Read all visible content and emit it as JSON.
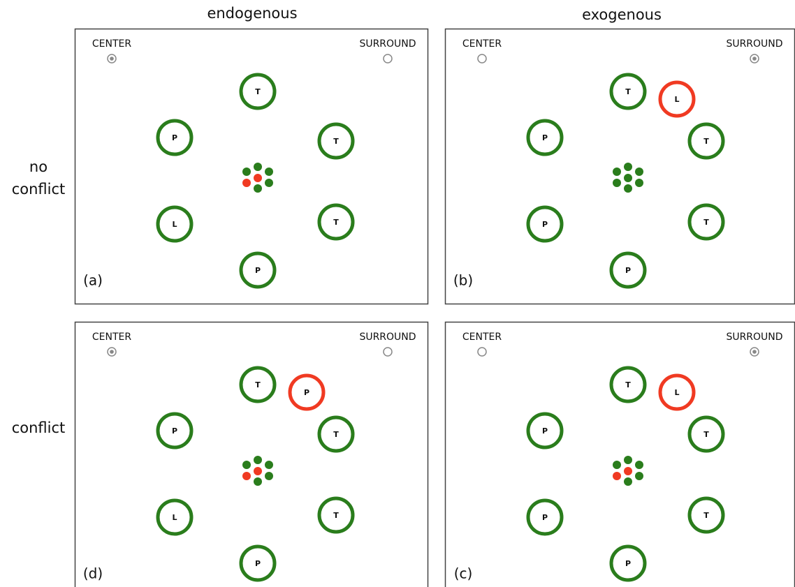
{
  "column_headers": [
    "endogenous",
    "exogenous"
  ],
  "row_labels": [
    {
      "lines": [
        "no",
        "conflict"
      ]
    },
    {
      "lines": [
        "conflict"
      ]
    }
  ],
  "panels": [
    {
      "label": "(a)",
      "center_label": "CENTER",
      "surround_label": "SURROUND",
      "selected": "center",
      "targets": [
        {
          "letter": "T",
          "color": "#2a7d1c"
        },
        {
          "letter": "P",
          "color": "#2a7d1c"
        },
        {
          "letter": "T",
          "color": "#2a7d1c"
        },
        {
          "letter": "L",
          "color": "#2a7d1c"
        },
        {
          "letter": "T",
          "color": "#2a7d1c"
        },
        {
          "letter": "P",
          "color": "#2a7d1c"
        }
      ],
      "dots": [
        "#2a7d1c",
        "#2a7d1c",
        "#2a7d1c",
        "#f03a22",
        "#f03a22",
        "#2a7d1c",
        "#2a7d1c"
      ]
    },
    {
      "label": "(b)",
      "center_label": "CENTER",
      "surround_label": "SURROUND",
      "selected": "surround",
      "targets": [
        {
          "letter": "T",
          "color": "#2a7d1c"
        },
        {
          "letter": "P",
          "color": "#2a7d1c"
        },
        {
          "letter": "T",
          "color": "#2a7d1c"
        },
        {
          "letter": "P",
          "color": "#2a7d1c"
        },
        {
          "letter": "T",
          "color": "#2a7d1c"
        },
        {
          "letter": "P",
          "color": "#2a7d1c"
        }
      ],
      "cue": {
        "letter": "L",
        "color": "#f03a22"
      },
      "dots": [
        "#2a7d1c",
        "#2a7d1c",
        "#2a7d1c",
        "#2a7d1c",
        "#2a7d1c",
        "#2a7d1c",
        "#2a7d1c"
      ]
    },
    {
      "label": "(d)",
      "center_label": "CENTER",
      "surround_label": "SURROUND",
      "selected": "center",
      "targets": [
        {
          "letter": "T",
          "color": "#2a7d1c"
        },
        {
          "letter": "P",
          "color": "#2a7d1c"
        },
        {
          "letter": "T",
          "color": "#2a7d1c"
        },
        {
          "letter": "L",
          "color": "#2a7d1c"
        },
        {
          "letter": "T",
          "color": "#2a7d1c"
        },
        {
          "letter": "P",
          "color": "#2a7d1c"
        }
      ],
      "cue": {
        "letter": "P",
        "color": "#f03a22"
      },
      "dots": [
        "#2a7d1c",
        "#2a7d1c",
        "#2a7d1c",
        "#f03a22",
        "#f03a22",
        "#2a7d1c",
        "#2a7d1c"
      ]
    },
    {
      "label": "(c)",
      "center_label": "CENTER",
      "surround_label": "SURROUND",
      "selected": "surround",
      "targets": [
        {
          "letter": "T",
          "color": "#2a7d1c"
        },
        {
          "letter": "P",
          "color": "#2a7d1c"
        },
        {
          "letter": "T",
          "color": "#2a7d1c"
        },
        {
          "letter": "P",
          "color": "#2a7d1c"
        },
        {
          "letter": "T",
          "color": "#2a7d1c"
        },
        {
          "letter": "P",
          "color": "#2a7d1c"
        }
      ],
      "cue": {
        "letter": "L",
        "color": "#f03a22"
      },
      "dots": [
        "#2a7d1c",
        "#2a7d1c",
        "#2a7d1c",
        "#f03a22",
        "#f03a22",
        "#2a7d1c",
        "#2a7d1c"
      ]
    }
  ]
}
